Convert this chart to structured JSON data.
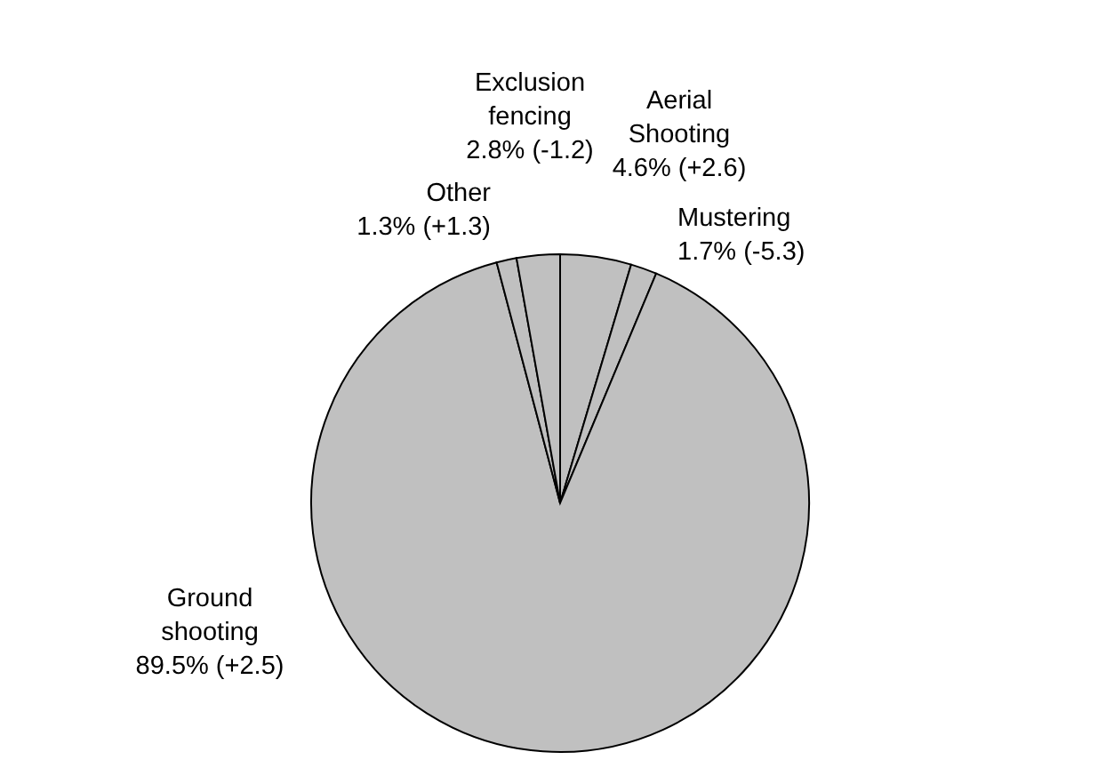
{
  "chart_data": {
    "type": "pie",
    "categories": [
      "Aerial Shooting",
      "Mustering",
      "Ground shooting",
      "Other",
      "Exclusion fencing"
    ],
    "values": [
      4.6,
      1.7,
      89.5,
      1.3,
      2.8
    ],
    "colors": [
      "#c0c0c0",
      "#c0c0c0",
      "#c0c0c0",
      "#c0c0c0",
      "#c0c0c0"
    ],
    "value_labels": [
      "4.6% (+2.6)",
      "1.7% (-5.3)",
      "89.5% (+2.5)",
      "1.3% (+1.3)",
      "2.8% (-1.2)"
    ]
  }
}
